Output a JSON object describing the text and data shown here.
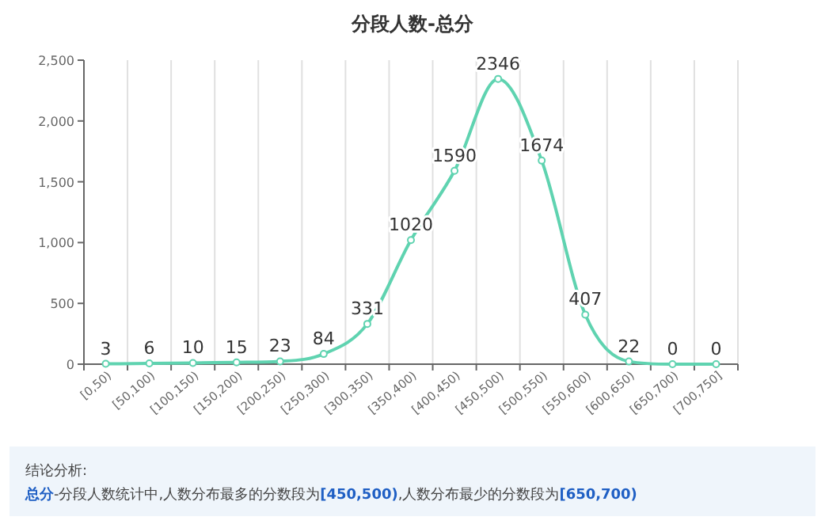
{
  "chart_data": {
    "type": "line",
    "title": "分段人数-总分",
    "categories": [
      "[0,50)",
      "[50,100)",
      "[100,150)",
      "[150,200)",
      "[200,250)",
      "[250,300)",
      "[300,350)",
      "[350,400)",
      "[400,450)",
      "[450,500)",
      "[500,550)",
      "[550,600)",
      "[600,650)",
      "[650,700)",
      "[700,750]"
    ],
    "values": [
      3,
      6,
      10,
      15,
      23,
      84,
      331,
      1020,
      1590,
      2346,
      1674,
      407,
      22,
      0,
      0
    ],
    "color": "#5fd3b0",
    "ylim": [
      0,
      2500
    ],
    "yticks": [
      0,
      500,
      {
        "value": 1000,
        "label": "1,000"
      },
      {
        "value": 1500,
        "label": "1,500"
      },
      {
        "value": 2000,
        "label": "2,000"
      },
      {
        "value": 2500,
        "label": "2,500"
      }
    ],
    "grid": "x",
    "data_labels": true,
    "marker": "circle",
    "annotations": [
      "结论分析:",
      "总分-分段人数统计中,人数分布最多的分数段为[450,500),人数分布最少的分数段为[650,700)"
    ]
  }
}
